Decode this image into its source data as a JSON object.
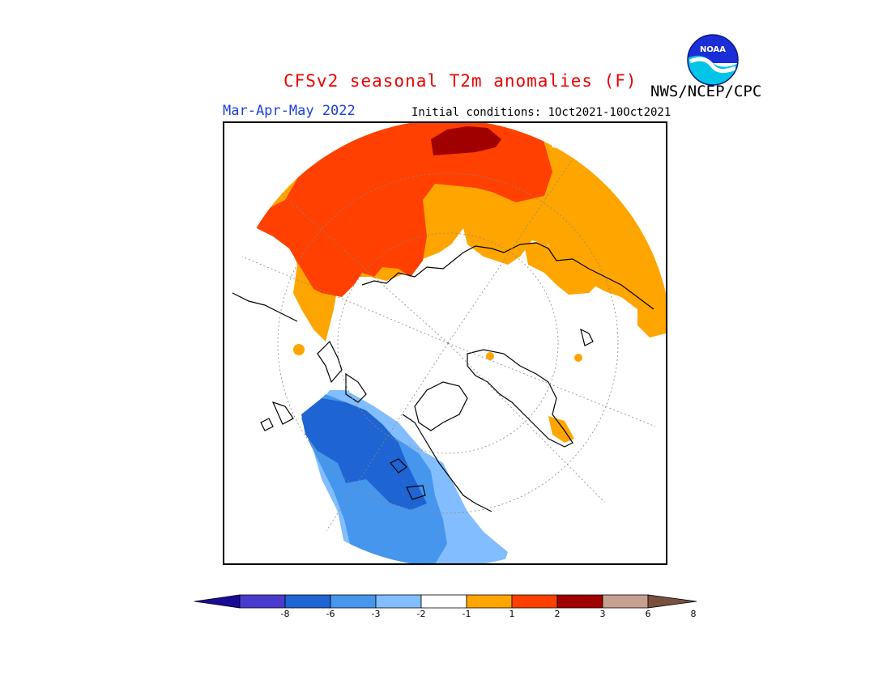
{
  "header": {
    "title": "CFSv2 seasonal T2m anomalies (F)",
    "agency": "NWS/NCEP/CPC",
    "season": "Mar-Apr-May 2022",
    "initial_conditions": "Initial conditions: 1Oct2021-10Oct2021",
    "logo_text": "NOAA"
  },
  "legend": {
    "tick_labels": [
      "-8",
      "-6",
      "-3",
      "-2",
      "-1",
      "1",
      "2",
      "3",
      "6",
      "8"
    ],
    "colors": [
      "#1a0a96",
      "#4a3acd",
      "#1e64d2",
      "#4696ee",
      "#82beff",
      "#ffffff",
      "#ffa500",
      "#ff4000",
      "#a00000",
      "#c8a092",
      "#7a5040"
    ]
  },
  "map": {
    "projection": "north-polar-stereographic",
    "anomaly_colors": {
      "warm_1_2": "#ffa500",
      "warm_2_3": "#ff4000",
      "warm_3_6": "#a00000",
      "cool_1_2": "#82beff",
      "cool_2_3": "#4696ee",
      "cool_3_6": "#1e64d2"
    }
  }
}
